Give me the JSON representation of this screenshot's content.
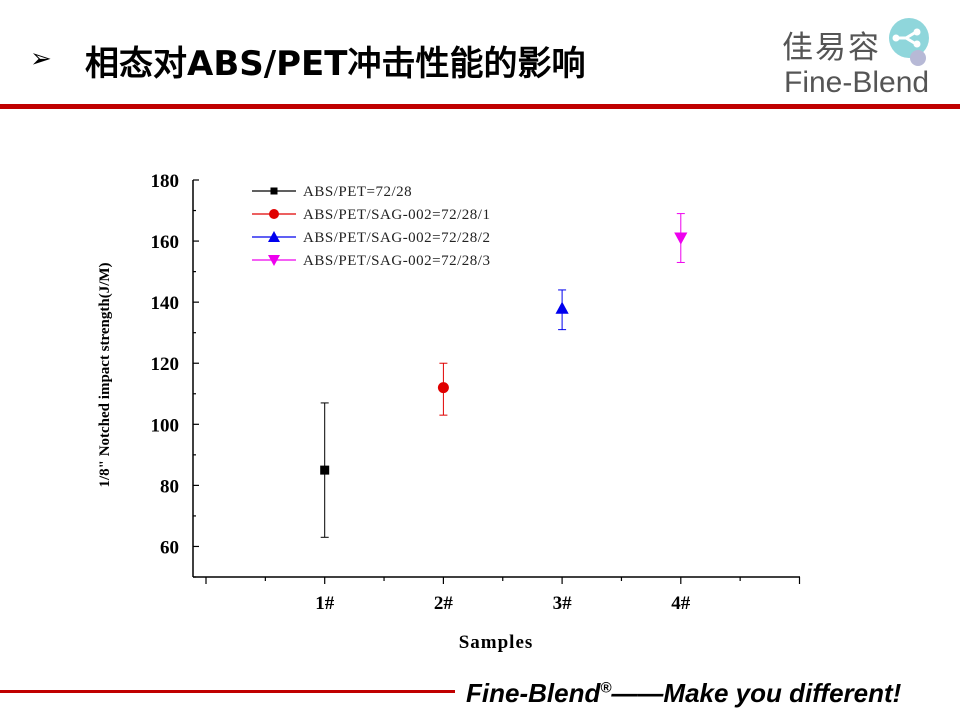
{
  "slide": {
    "bullet": "➢",
    "title": "相态对ABS/PET冲击性能的影响"
  },
  "logo": {
    "chinese": "佳易容",
    "english": "Fine-Blend"
  },
  "footer": {
    "brand": "Fine-Blend",
    "registered": "®",
    "slogan": "——Make you different!"
  },
  "colors": {
    "accent_red": "#c00000",
    "series": [
      "#000000",
      "#e00000",
      "#0000ee",
      "#ee00ee"
    ]
  },
  "chart_data": {
    "type": "scatter",
    "xlabel": "Samples",
    "ylabel": "1/8\" Notched impact strength(J/M)",
    "categories": [
      "1#",
      "2#",
      "3#",
      "4#"
    ],
    "ylim": [
      50,
      180
    ],
    "yticks": [
      60,
      80,
      100,
      120,
      140,
      160,
      180
    ],
    "legend_position": "top-left",
    "grid": false,
    "series": [
      {
        "name": "ABS/PET=72/28",
        "marker": "square",
        "color": "#000000",
        "category": "1#",
        "value": 85,
        "error_low": 63,
        "error_high": 107
      },
      {
        "name": "ABS/PET/SAG-002=72/28/1",
        "marker": "circle",
        "color": "#e00000",
        "category": "2#",
        "value": 112,
        "error_low": 103,
        "error_high": 120
      },
      {
        "name": "ABS/PET/SAG-002=72/28/2",
        "marker": "triangle-up",
        "color": "#0000ee",
        "category": "3#",
        "value": 138,
        "error_low": 131,
        "error_high": 144
      },
      {
        "name": "ABS/PET/SAG-002=72/28/3",
        "marker": "triangle-down",
        "color": "#ee00ee",
        "category": "4#",
        "value": 161,
        "error_low": 153,
        "error_high": 169
      }
    ]
  }
}
